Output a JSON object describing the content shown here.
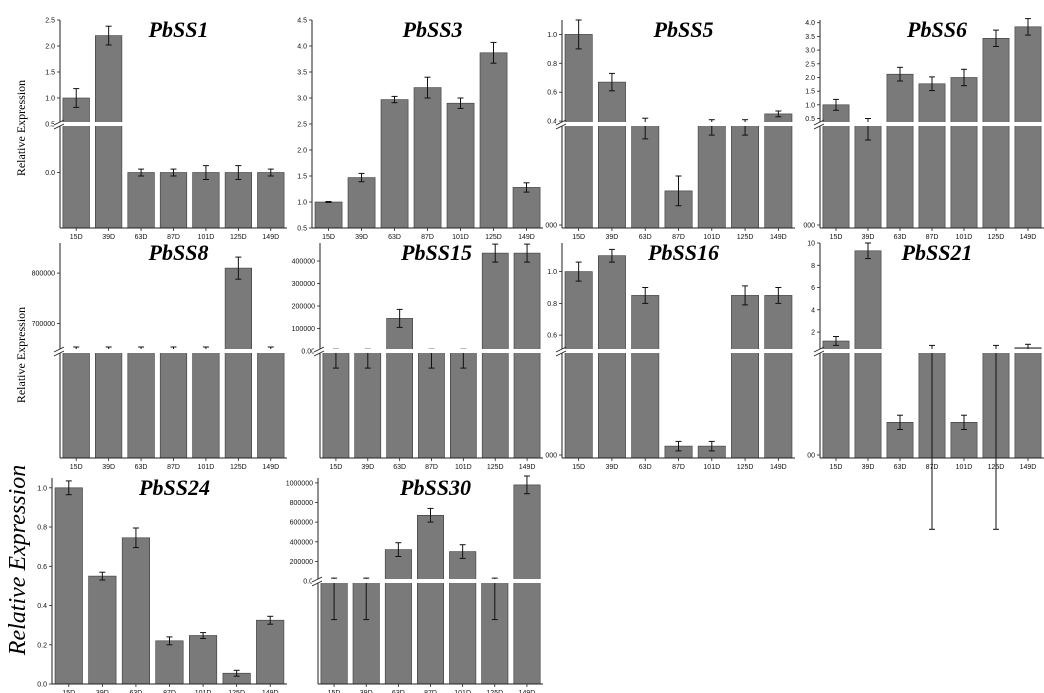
{
  "y_axis_label": "Relative Expression",
  "global_y_label": "Relative Expression",
  "colors": {
    "bar": "#7a7a7a",
    "bar_edge": "#3a3a3a",
    "axis": "#222222",
    "error": "#111111"
  },
  "chart_data": [
    {
      "type": "bar",
      "title": "PbSS1",
      "categories": [
        "15D",
        "39D",
        "63D",
        "87D",
        "101D",
        "125D",
        "149D"
      ],
      "values": [
        1.0,
        2.2,
        0.0,
        0.0,
        0.0,
        0.0,
        0.0
      ],
      "errors": [
        0.18,
        0.18,
        0.05,
        0.05,
        0.1,
        0.1,
        0.05
      ],
      "upper_range": [
        0.5,
        2.5
      ],
      "upper_ticks": [
        "0.5",
        "1.0",
        "1.5",
        "2.0",
        "2.5"
      ],
      "lower_range": [
        -0.8,
        0.7
      ],
      "lower_ticks": [
        "0.0"
      ],
      "axis_break": true
    },
    {
      "type": "bar",
      "title": "PbSS3",
      "categories": [
        "15D",
        "39D",
        "63D",
        "87D",
        "101D",
        "125D",
        "149D"
      ],
      "values": [
        1.0,
        1.47,
        2.97,
        3.2,
        2.9,
        3.87,
        1.28
      ],
      "errors": [
        0.01,
        0.08,
        0.06,
        0.2,
        0.1,
        0.2,
        0.09
      ],
      "y_range": [
        0.5,
        4.5
      ],
      "y_ticks": [
        "0.5",
        "1.0",
        "1.5",
        "2.0",
        "2.5",
        "3.0",
        "3.5",
        "4.0",
        "4.5"
      ],
      "axis_break": false
    },
    {
      "type": "bar",
      "title": "PbSS5",
      "categories": [
        "15D",
        "39D",
        "63D",
        "87D",
        "101D",
        "125D",
        "149D"
      ],
      "values": [
        1.0,
        0.67,
        0.38,
        0.2,
        0.38,
        0.38,
        0.45
      ],
      "errors": [
        0.1,
        0.06,
        0.04,
        0.04,
        0.03,
        0.03,
        0.02
      ],
      "upper_range": [
        0.38,
        1.1
      ],
      "upper_ticks": [
        "0.4",
        "0.6",
        "0.8",
        "1.0"
      ],
      "lower_range": [
        0.1,
        0.38
      ],
      "lower_ticks": [
        "000"
      ],
      "axis_break": true
    },
    {
      "type": "bar",
      "title": "PbSS6",
      "categories": [
        "15D",
        "39D",
        "63D",
        "87D",
        "101D",
        "125D",
        "149D"
      ],
      "values": [
        1.0,
        0.3,
        2.12,
        1.77,
        2.0,
        3.43,
        3.85
      ],
      "errors": [
        0.2,
        0.2,
        0.25,
        0.25,
        0.3,
        0.3,
        0.3
      ],
      "upper_range": [
        0.3,
        4.1
      ],
      "upper_ticks": [
        "0.5",
        "1.0",
        "1.5",
        "2.0",
        "2.5",
        "3.0",
        "3.5",
        "4.0"
      ],
      "lower_range": [
        -1.0,
        0.3
      ],
      "lower_ticks": [
        "000"
      ],
      "axis_break": true
    },
    {
      "type": "bar",
      "title": "PbSS8",
      "categories": [
        "15D",
        "39D",
        "63D",
        "87D",
        "101D",
        "125D",
        "149D"
      ],
      "values": [
        645000,
        645000,
        645000,
        645000,
        645000,
        810000,
        645000
      ],
      "errors": [
        8000,
        8000,
        8000,
        8000,
        8000,
        22000,
        8000
      ],
      "upper_range": [
        645000,
        860000
      ],
      "upper_ticks": [
        "700000",
        "800000"
      ],
      "lower_range": [
        0,
        645000
      ],
      "lower_ticks": [],
      "axis_break": true
    },
    {
      "type": "bar",
      "title": "PbSS15",
      "categories": [
        "15D",
        "39D",
        "63D",
        "87D",
        "101D",
        "125D",
        "149D"
      ],
      "values": [
        0,
        0,
        145000,
        0,
        0,
        435000,
        435000
      ],
      "errors": [
        8000,
        8000,
        40000,
        8000,
        8000,
        40000,
        40000
      ],
      "upper_range": [
        0,
        480000
      ],
      "upper_ticks": [
        "100000",
        "200000",
        "300000",
        "400000"
      ],
      "lower_range": [
        -50000,
        0
      ],
      "lower_ticks": [
        "0.00"
      ],
      "axis_break": true
    },
    {
      "type": "bar",
      "title": "PbSS16",
      "categories": [
        "15D",
        "39D",
        "63D",
        "87D",
        "101D",
        "125D",
        "149D"
      ],
      "values": [
        1.0,
        1.1,
        0.85,
        0.1,
        0.1,
        0.85,
        0.85
      ],
      "errors": [
        0.06,
        0.04,
        0.05,
        0.02,
        0.02,
        0.06,
        0.05
      ],
      "upper_range": [
        0.5,
        1.18
      ],
      "upper_ticks": [
        "0.6",
        "0.8",
        "1.0"
      ],
      "lower_range": [
        0.05,
        0.5
      ],
      "lower_ticks": [
        "000"
      ],
      "axis_break": true
    },
    {
      "type": "bar",
      "title": "PbSS21",
      "categories": [
        "15D",
        "39D",
        "63D",
        "87D",
        "101D",
        "125D",
        "149D"
      ],
      "values": [
        1.2,
        9.3,
        0.1,
        0.3,
        0.1,
        0.3,
        0.6
      ],
      "errors": [
        0.4,
        0.7,
        0.02,
        0.5,
        0.02,
        0.5,
        0.3
      ],
      "upper_range": [
        0.3,
        10.0
      ],
      "upper_ticks": [
        "2",
        "4",
        "6",
        "8",
        "10"
      ],
      "lower_range": [
        0.0,
        0.3
      ],
      "lower_ticks": [
        "00"
      ],
      "axis_break": true
    },
    {
      "type": "bar",
      "title": "PbSS24",
      "categories": [
        "15D",
        "39D",
        "63D",
        "87D",
        "101D",
        "125D",
        "149D"
      ],
      "values": [
        1.0,
        0.55,
        0.745,
        0.22,
        0.247,
        0.055,
        0.325
      ],
      "errors": [
        0.035,
        0.02,
        0.05,
        0.02,
        0.015,
        0.015,
        0.02
      ],
      "y_range": [
        0.0,
        1.05
      ],
      "y_ticks": [
        "0.0",
        "0.2",
        "0.4",
        "0.6",
        "0.8",
        "1.0"
      ],
      "axis_break": false
    },
    {
      "type": "bar",
      "title": "PbSS30",
      "categories": [
        "15D",
        "39D",
        "63D",
        "87D",
        "101D",
        "125D",
        "149D"
      ],
      "values": [
        0,
        0,
        320000,
        670000,
        300000,
        0,
        980000
      ],
      "errors": [
        30000,
        30000,
        70000,
        70000,
        70000,
        30000,
        90000
      ],
      "upper_range": [
        0,
        1050000
      ],
      "upper_ticks": [
        "200000",
        "400000",
        "600000",
        "800000",
        "1000000"
      ],
      "lower_range": [
        -80000,
        0
      ],
      "lower_ticks": [
        "0.0"
      ],
      "axis_break": true
    }
  ]
}
